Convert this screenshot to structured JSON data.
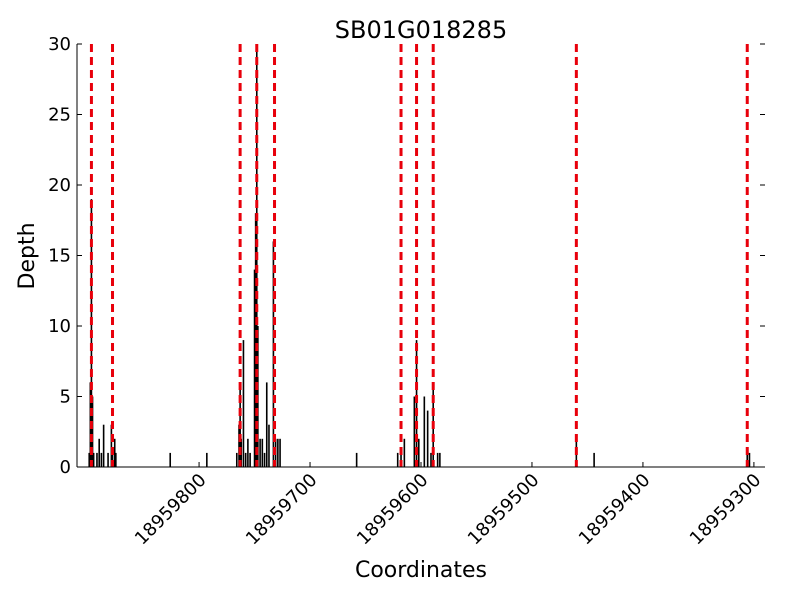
{
  "chart_data": {
    "type": "bar",
    "title": "SB01G018285",
    "xlabel": "Coordinates",
    "ylabel": "Depth",
    "xlim": [
      18959910,
      18959290
    ],
    "ylim": [
      0,
      30
    ],
    "x_ticks": [
      18959800,
      18959700,
      18959600,
      18959500,
      18959400,
      18959300
    ],
    "y_ticks": [
      0,
      5,
      10,
      15,
      20,
      25,
      30
    ],
    "colors": {
      "bars": "#000000",
      "markers": "#e8000b"
    },
    "vertical_markers": [
      18959897,
      18959878,
      18959763,
      18959748,
      18959732,
      18959618,
      18959604,
      18959589,
      18959460,
      18959306
    ],
    "bars": [
      {
        "x": 18959899,
        "y": 1
      },
      {
        "x": 18959898,
        "y": 6
      },
      {
        "x": 18959897,
        "y": 19
      },
      {
        "x": 18959896,
        "y": 5
      },
      {
        "x": 18959895,
        "y": 1
      },
      {
        "x": 18959892,
        "y": 1
      },
      {
        "x": 18959890,
        "y": 2
      },
      {
        "x": 18959888,
        "y": 1
      },
      {
        "x": 18959886,
        "y": 3
      },
      {
        "x": 18959882,
        "y": 1
      },
      {
        "x": 18959879,
        "y": 3
      },
      {
        "x": 18959878,
        "y": 1
      },
      {
        "x": 18959876,
        "y": 2
      },
      {
        "x": 18959875,
        "y": 1
      },
      {
        "x": 18959826,
        "y": 1
      },
      {
        "x": 18959793,
        "y": 1
      },
      {
        "x": 18959766,
        "y": 1
      },
      {
        "x": 18959764,
        "y": 3
      },
      {
        "x": 18959763,
        "y": 6
      },
      {
        "x": 18959762,
        "y": 2
      },
      {
        "x": 18959760,
        "y": 9
      },
      {
        "x": 18959758,
        "y": 1
      },
      {
        "x": 18959756,
        "y": 2
      },
      {
        "x": 18959754,
        "y": 1
      },
      {
        "x": 18959750,
        "y": 14
      },
      {
        "x": 18959749,
        "y": 18
      },
      {
        "x": 18959748,
        "y": 30
      },
      {
        "x": 18959747,
        "y": 10
      },
      {
        "x": 18959745,
        "y": 2
      },
      {
        "x": 18959743,
        "y": 2
      },
      {
        "x": 18959741,
        "y": 1
      },
      {
        "x": 18959739,
        "y": 6
      },
      {
        "x": 18959737,
        "y": 3
      },
      {
        "x": 18959733,
        "y": 16
      },
      {
        "x": 18959731,
        "y": 2
      },
      {
        "x": 18959729,
        "y": 2
      },
      {
        "x": 18959727,
        "y": 2
      },
      {
        "x": 18959658,
        "y": 1
      },
      {
        "x": 18959621,
        "y": 1
      },
      {
        "x": 18959618,
        "y": 1
      },
      {
        "x": 18959615,
        "y": 2
      },
      {
        "x": 18959606,
        "y": 5
      },
      {
        "x": 18959604,
        "y": 9
      },
      {
        "x": 18959602,
        "y": 2
      },
      {
        "x": 18959597,
        "y": 5
      },
      {
        "x": 18959594,
        "y": 4
      },
      {
        "x": 18959591,
        "y": 1
      },
      {
        "x": 18959589,
        "y": 6
      },
      {
        "x": 18959585,
        "y": 1
      },
      {
        "x": 18959583,
        "y": 1
      },
      {
        "x": 18959460,
        "y": 2
      },
      {
        "x": 18959444,
        "y": 1
      },
      {
        "x": 18959306,
        "y": 1
      },
      {
        "x": 18959304,
        "y": 1
      }
    ]
  }
}
